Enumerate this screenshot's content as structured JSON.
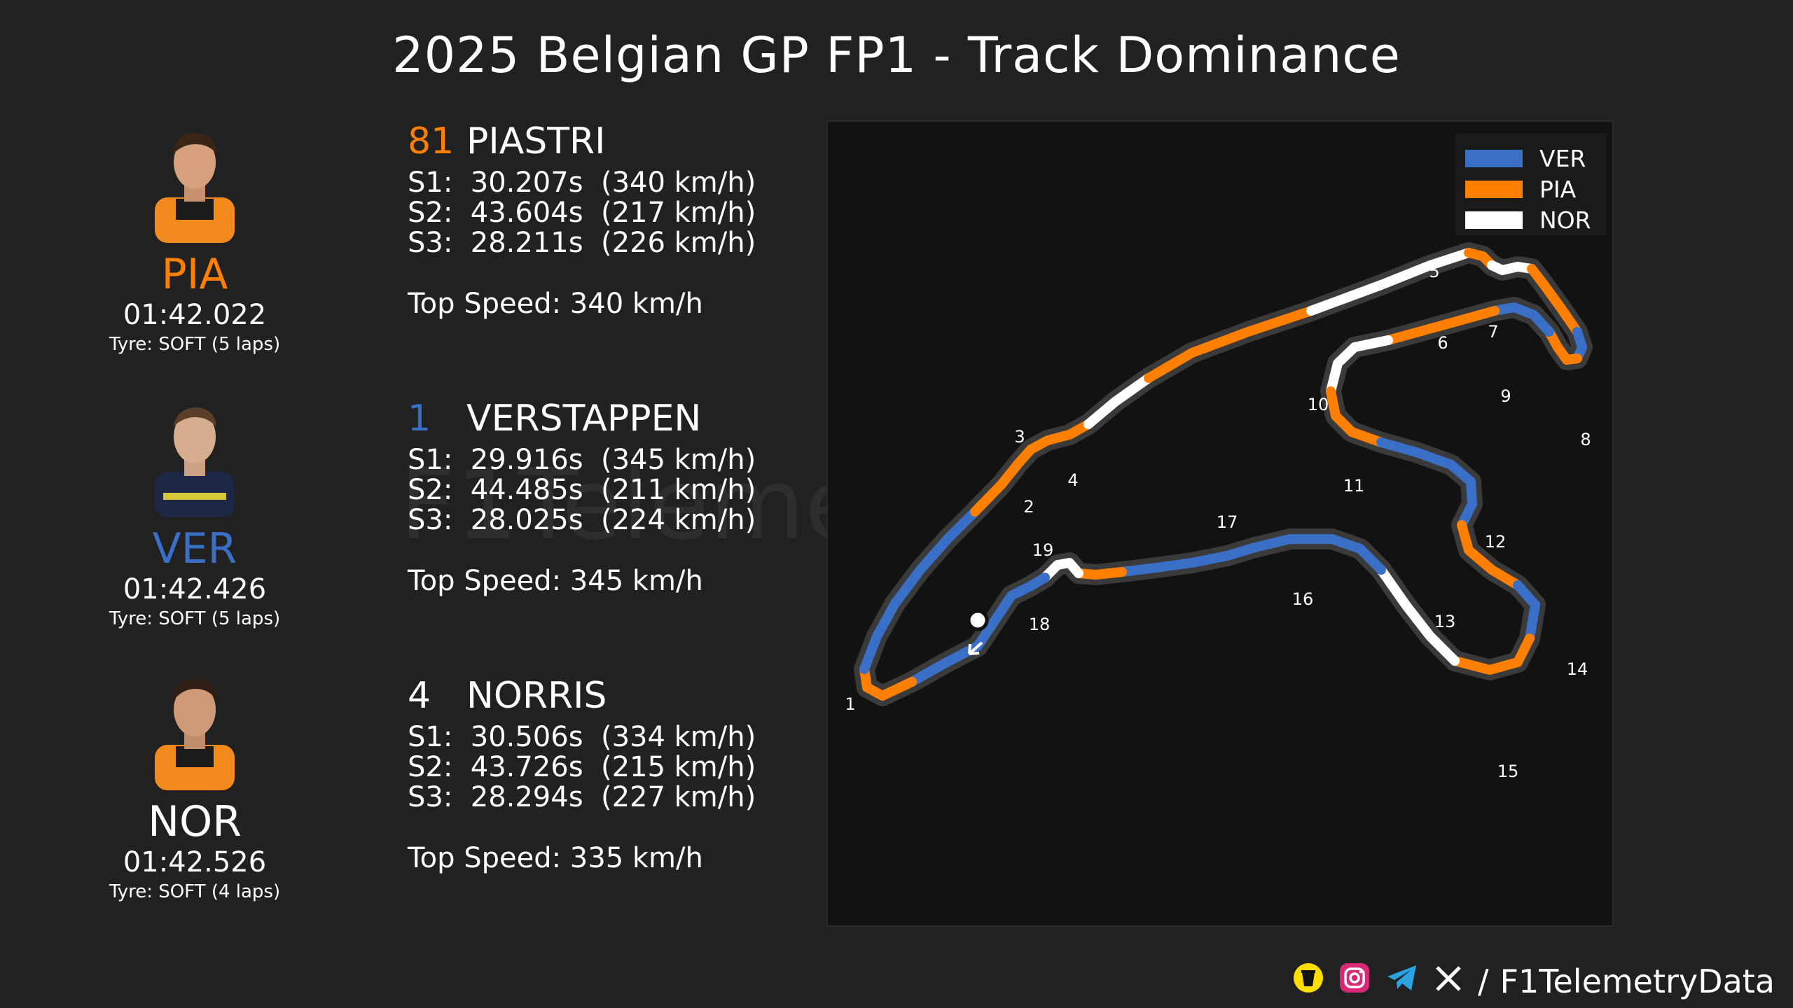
{
  "title": "2025 Belgian GP FP1 - Track Dominance",
  "watermark": "F1TelemetryData",
  "colors": {
    "VER": "#3a6fc8",
    "PIA": "#ff8000",
    "NOR": "#ffffff"
  },
  "drivers": [
    {
      "code": "PIA",
      "number": "81",
      "name": "PIASTRI",
      "color": "#ff8000",
      "lap_time": "01:42.022",
      "tyre": "Tyre: SOFT (5 laps)",
      "s1": "S1:  30.207s  (340 km/h)",
      "s2": "S2:  43.604s  (217 km/h)",
      "s3": "S3:  28.211s  (226 km/h)",
      "top_speed": "Top Speed: 340 km/h"
    },
    {
      "code": "VER",
      "number": "1",
      "name": "VERSTAPPEN",
      "color": "#3a6fc8",
      "lap_time": "01:42.426",
      "tyre": "Tyre: SOFT (5 laps)",
      "s1": "S1:  29.916s  (345 km/h)",
      "s2": "S2:  44.485s  (211 km/h)",
      "s3": "S3:  28.025s  (224 km/h)",
      "top_speed": "Top Speed: 345 km/h"
    },
    {
      "code": "NOR",
      "number": "4",
      "name": "NORRIS",
      "color": "#ffffff",
      "lap_time": "01:42.526",
      "tyre": "Tyre: SOFT (4 laps)",
      "s1": "S1:  30.506s  (334 km/h)",
      "s2": "S2:  43.726s  (215 km/h)",
      "s3": "S3:  28.294s  (227 km/h)",
      "top_speed": "Top Speed: 335 km/h"
    }
  ],
  "chart_data": {
    "type": "track_map",
    "legend": [
      "VER",
      "PIA",
      "NOR"
    ],
    "corners": [
      "1",
      "2",
      "3",
      "4",
      "5",
      "6",
      "7",
      "8",
      "9",
      "10",
      "11",
      "12",
      "13",
      "14",
      "15",
      "16",
      "17",
      "18",
      "19"
    ],
    "fastest_by_segment": [
      "VER",
      "PIA",
      "VER",
      "VER",
      "PIA",
      "PIA",
      "NOR",
      "PIA",
      "NOR",
      "PIA",
      "NOR",
      "PIA",
      "VER",
      "PIA",
      "VER",
      "PIA",
      "NOR",
      "PIA",
      "VER",
      "VER",
      "PIA",
      "VER",
      "PIA",
      "NOR",
      "VER",
      "VER",
      "VER",
      "PIA",
      "NOR",
      "VER"
    ]
  },
  "footer": {
    "separator": "/",
    "handle": "F1TelemetryData",
    "icons": [
      "coffee-icon",
      "instagram-icon",
      "telegram-icon",
      "x-icon"
    ]
  }
}
